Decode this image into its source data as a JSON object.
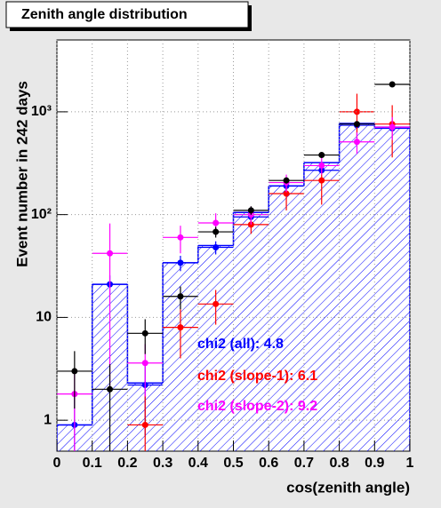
{
  "chart_data": {
    "type": "histogram",
    "title": "Zenith angle distribution",
    "x_label": "cos(zenith angle)",
    "y_label": "Event number in 242 days",
    "bins": [
      0,
      0.1,
      0.2,
      0.3,
      0.4,
      0.5,
      0.6,
      0.7,
      0.8,
      0.9,
      1
    ],
    "values": [
      0.9,
      21,
      2.3,
      34,
      50,
      105,
      190,
      320,
      770,
      710
    ],
    "color": "#0000ff",
    "x": [
      0.05,
      0.15,
      0.25,
      0.35,
      0.45,
      0.55,
      0.65,
      0.75,
      0.85,
      0.95
    ],
    "series": [
      {
        "color": "#0000ff",
        "values": [
          0.9,
          21,
          2.2,
          34,
          48,
          95,
          190,
          270,
          740,
          690
        ],
        "errors": [
          0.9,
          4.6,
          1.5,
          5.8,
          7,
          10,
          14,
          16,
          27,
          26
        ]
      },
      {
        "color": "#ff0000",
        "values": [
          null,
          null,
          0.9,
          8,
          13.5,
          80,
          160,
          215,
          1000,
          760
        ],
        "errors": [
          null,
          null,
          0.9,
          4,
          5,
          15,
          50,
          90,
          500,
          400
        ]
      },
      {
        "color": "#ff00ff",
        "values": [
          1.8,
          42,
          3.6,
          60,
          83,
          100,
          205,
          300,
          510,
          710
        ],
        "errors": [
          1.3,
          40,
          1.9,
          18,
          20,
          20,
          40,
          55,
          120,
          180
        ]
      },
      {
        "color": "#000000",
        "values": [
          3.0,
          2.0,
          7.0,
          16,
          68,
          110,
          215,
          380,
          760,
          1850
        ],
        "errors": [
          1.7,
          1.5,
          2.6,
          4,
          8.2,
          10.5,
          14.7,
          19.5,
          27.6,
          43
        ]
      }
    ],
    "annotations": [
      {
        "text": "chi2 (all): 4.8",
        "color": "#0000ff"
      },
      {
        "text": "chi2 (slope-1): 6.1",
        "color": "#ff0000"
      },
      {
        "text": "chi2 (slope-2): 9.2",
        "color": "#ff00ff"
      }
    ],
    "xlim": [
      0,
      1
    ],
    "xticks": [
      0,
      0.1,
      0.2,
      0.3,
      0.4,
      0.5,
      0.6,
      0.7,
      0.8,
      0.9,
      1
    ],
    "ylim": [
      0.5,
      5000
    ],
    "yticks": [
      1,
      10,
      {
        "value": 100,
        "label": "10²"
      },
      {
        "value": 1000,
        "label": "10³"
      }
    ],
    "log_y": true,
    "grid": true
  }
}
